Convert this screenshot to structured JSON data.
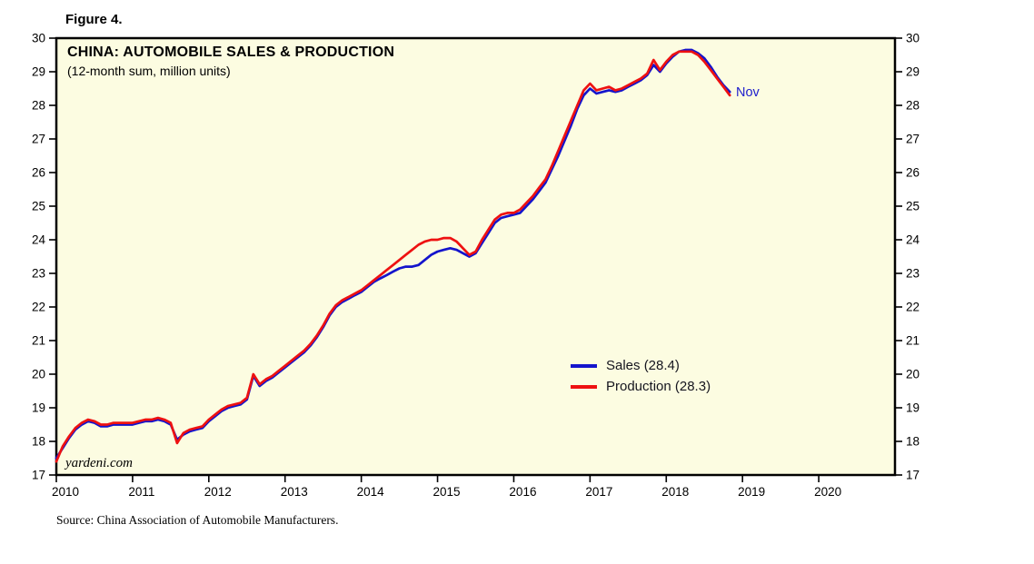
{
  "figure_label": "Figure 4.",
  "chart": {
    "title": "CHINA: AUTOMOBILE SALES & PRODUCTION",
    "subtitle": "(12-month sum, million units)",
    "watermark": "yardeni.com",
    "end_label": "Nov",
    "end_label_color": "#1c1ccd",
    "plot_bg_color": "#fcfce1",
    "frame_color": "#000000",
    "legend": [
      {
        "label": "Sales (28.4)",
        "color": "#1414cc"
      },
      {
        "label": "Production (28.3)",
        "color": "#ee1111"
      }
    ]
  },
  "source": "Source: China Association of Automobile Manufacturers.",
  "chart_data": {
    "type": "line",
    "title": "CHINA: AUTOMOBILE SALES & PRODUCTION",
    "subtitle": "(12-month sum, million units)",
    "xlabel": "",
    "ylabel": "million units, 12-month sum",
    "x_range": [
      2010,
      2021
    ],
    "y_range": [
      17,
      30
    ],
    "x_ticks": [
      2010,
      2011,
      2012,
      2013,
      2014,
      2015,
      2016,
      2017,
      2018,
      2019,
      2020
    ],
    "y_ticks": [
      17,
      18,
      19,
      20,
      21,
      22,
      23,
      24,
      25,
      26,
      27,
      28,
      29,
      30
    ],
    "grid": false,
    "legend_position": "inside-right-middle",
    "x_start": 2010.0,
    "points_per_year": 12,
    "x_note": "monthly values, Jan 2010 through Nov 2018",
    "series": [
      {
        "name": "Sales",
        "color": "#1414cc",
        "end_value": 28.4,
        "values": [
          17.5,
          17.8,
          18.1,
          18.35,
          18.5,
          18.6,
          18.55,
          18.45,
          18.45,
          18.5,
          18.5,
          18.5,
          18.5,
          18.55,
          18.6,
          18.6,
          18.65,
          18.6,
          18.5,
          18.05,
          18.2,
          18.3,
          18.35,
          18.4,
          18.6,
          18.75,
          18.9,
          19.0,
          19.05,
          19.1,
          19.25,
          19.95,
          19.65,
          19.8,
          19.9,
          20.05,
          20.2,
          20.35,
          20.5,
          20.65,
          20.85,
          21.1,
          21.4,
          21.75,
          22.0,
          22.15,
          22.25,
          22.35,
          22.45,
          22.6,
          22.75,
          22.85,
          22.95,
          23.05,
          23.15,
          23.2,
          23.2,
          23.25,
          23.4,
          23.55,
          23.65,
          23.7,
          23.75,
          23.7,
          23.6,
          23.5,
          23.6,
          23.9,
          24.2,
          24.5,
          24.65,
          24.7,
          24.75,
          24.8,
          25.0,
          25.2,
          25.45,
          25.7,
          26.1,
          26.5,
          26.95,
          27.4,
          27.9,
          28.3,
          28.5,
          28.35,
          28.4,
          28.45,
          28.4,
          28.45,
          28.55,
          28.65,
          28.75,
          28.9,
          29.2,
          29.0,
          29.25,
          29.45,
          29.6,
          29.65,
          29.65,
          29.55,
          29.4,
          29.15,
          28.85,
          28.6,
          28.4
        ]
      },
      {
        "name": "Production",
        "color": "#ee1111",
        "end_value": 28.3,
        "values": [
          17.4,
          17.85,
          18.15,
          18.4,
          18.55,
          18.65,
          18.6,
          18.5,
          18.5,
          18.55,
          18.55,
          18.55,
          18.55,
          18.6,
          18.65,
          18.65,
          18.7,
          18.65,
          18.55,
          17.95,
          18.25,
          18.35,
          18.4,
          18.45,
          18.65,
          18.8,
          18.95,
          19.05,
          19.1,
          19.15,
          19.3,
          20.0,
          19.7,
          19.85,
          19.95,
          20.1,
          20.25,
          20.4,
          20.55,
          20.7,
          20.9,
          21.15,
          21.45,
          21.8,
          22.05,
          22.2,
          22.3,
          22.4,
          22.5,
          22.65,
          22.8,
          22.95,
          23.1,
          23.25,
          23.4,
          23.55,
          23.7,
          23.85,
          23.95,
          24.0,
          24.0,
          24.05,
          24.05,
          23.95,
          23.75,
          23.55,
          23.65,
          24.0,
          24.3,
          24.6,
          24.75,
          24.8,
          24.8,
          24.9,
          25.1,
          25.3,
          25.55,
          25.8,
          26.2,
          26.65,
          27.1,
          27.55,
          28.0,
          28.45,
          28.65,
          28.45,
          28.5,
          28.55,
          28.45,
          28.5,
          28.6,
          28.7,
          28.8,
          28.95,
          29.35,
          29.05,
          29.3,
          29.5,
          29.6,
          29.6,
          29.6,
          29.5,
          29.3,
          29.05,
          28.8,
          28.55,
          28.3
        ]
      }
    ]
  }
}
